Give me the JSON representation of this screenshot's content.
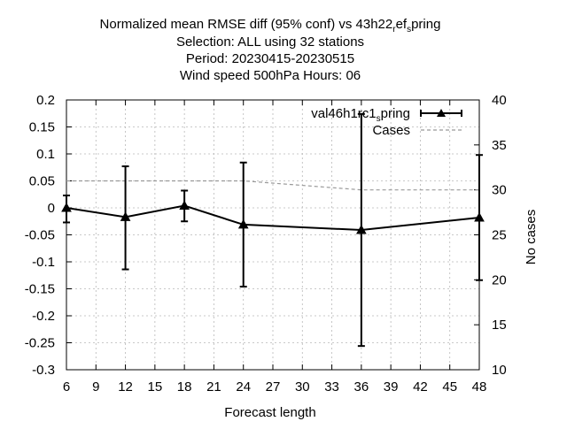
{
  "chart_data": {
    "type": "line",
    "title_lines": [
      "Normalized mean RMSE diff (95% conf) vs 43h22",
      "Selection: ALL using    32 stations",
      "Period: 20230415-20230515",
      "Wind speed 500hPa   Hours:  06"
    ],
    "title_subscript_parts": {
      "first": "r",
      "middle": "ef",
      "second": "s",
      "tail": "pring"
    },
    "xlabel": "Forecast length",
    "ylabel": "",
    "y2label": "No cases",
    "xlim": [
      6,
      48
    ],
    "ylim": [
      -0.3,
      0.2
    ],
    "y2lim": [
      10,
      40
    ],
    "x_ticks": [
      "6",
      "9",
      "12",
      "15",
      "18",
      "21",
      "24",
      "27",
      "30",
      "33",
      "36",
      "39",
      "42",
      "45",
      "48"
    ],
    "y_ticks": [
      "0.2",
      "0.15",
      "0.1",
      "0.05",
      "0",
      "-0.05",
      "-0.1",
      "-0.15",
      "-0.2",
      "-0.25",
      "-0.3"
    ],
    "y2_ticks": [
      "40",
      "35",
      "30",
      "25",
      "20",
      "15",
      "10"
    ],
    "grid": true,
    "legend_placement": "top-right",
    "series": [
      {
        "name": "val46h1rc1",
        "name_subscript": "s",
        "name_tail": "pring",
        "color": "#000000",
        "marker": "triangle",
        "x": [
          6,
          12,
          18,
          24,
          36,
          48
        ],
        "values": [
          0.0,
          -0.017,
          0.004,
          -0.031,
          -0.041,
          -0.018
        ],
        "err_low": [
          -0.027,
          -0.114,
          -0.025,
          -0.146,
          -0.256,
          -0.134
        ],
        "err_high": [
          0.023,
          0.077,
          0.032,
          0.084,
          0.174,
          0.098
        ]
      },
      {
        "name": "Cases",
        "color": "#999999",
        "dash": true,
        "axis": "y2",
        "x": [
          6,
          12,
          18,
          24,
          30,
          36,
          42,
          48
        ],
        "values": [
          31,
          31,
          31,
          31,
          30.5,
          30,
          30,
          30
        ]
      }
    ]
  }
}
